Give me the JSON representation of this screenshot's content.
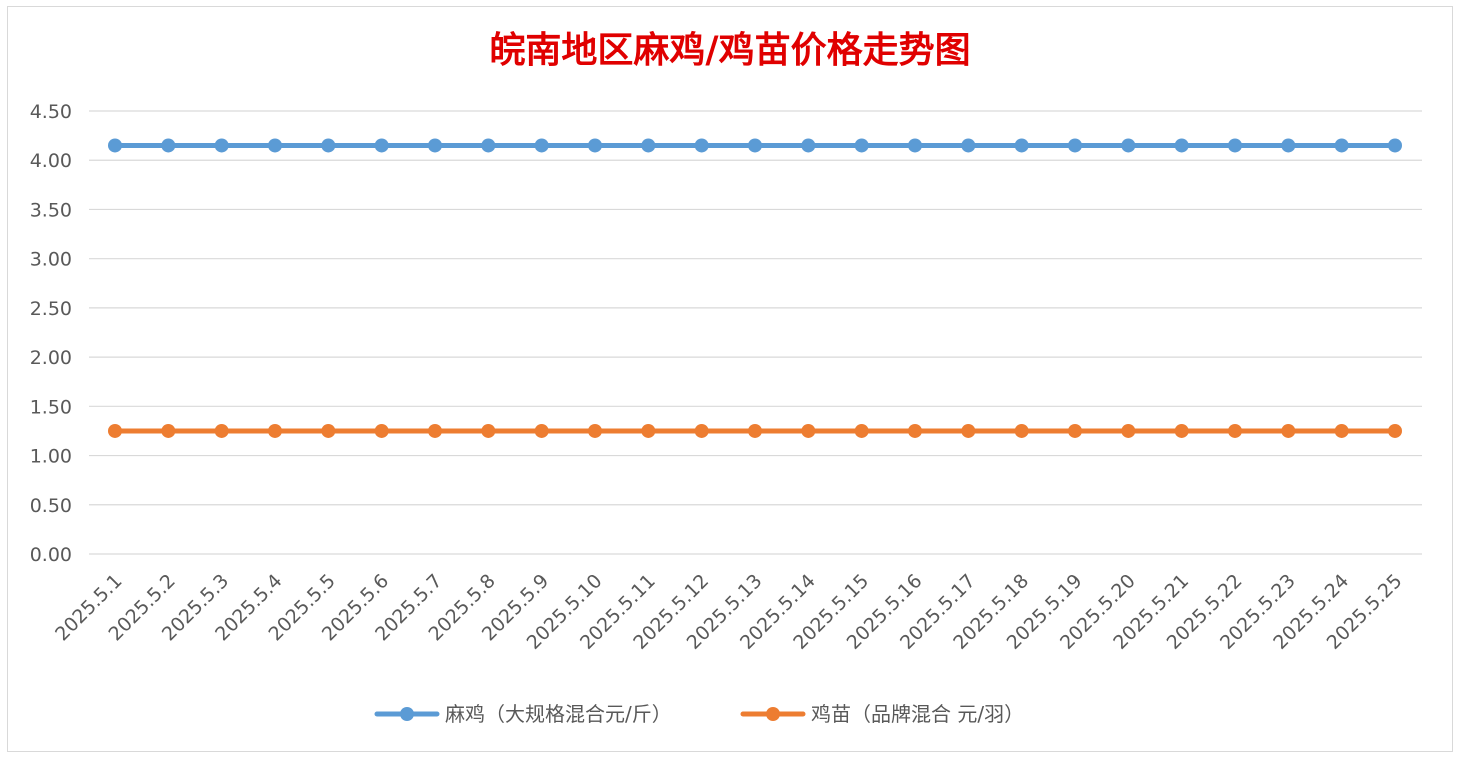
{
  "chart_data": {
    "type": "line",
    "title": "皖南地区麻鸡/鸡苗价格走势图",
    "xlabel": "",
    "ylabel": "",
    "ylim": [
      0,
      4.5
    ],
    "yticks": [
      "0.00",
      "0.50",
      "1.00",
      "1.50",
      "2.00",
      "2.50",
      "3.00",
      "3.50",
      "4.00",
      "4.50"
    ],
    "grid": true,
    "legend_position": "bottom",
    "categories": [
      "2025.5.1",
      "2025.5.2",
      "2025.5.3",
      "2025.5.4",
      "2025.5.5",
      "2025.5.6",
      "2025.5.7",
      "2025.5.8",
      "2025.5.9",
      "2025.5.10",
      "2025.5.11",
      "2025.5.12",
      "2025.5.13",
      "2025.5.14",
      "2025.5.15",
      "2025.5.16",
      "2025.5.17",
      "2025.5.18",
      "2025.5.19",
      "2025.5.20",
      "2025.5.21",
      "2025.5.22",
      "2025.5.23",
      "2025.5.24",
      "2025.5.25"
    ],
    "series": [
      {
        "name": "麻鸡（大规格混合元/斤）",
        "color": "#5b9bd5",
        "values": [
          4.15,
          4.15,
          4.15,
          4.15,
          4.15,
          4.15,
          4.15,
          4.15,
          4.15,
          4.15,
          4.15,
          4.15,
          4.15,
          4.15,
          4.15,
          4.15,
          4.15,
          4.15,
          4.15,
          4.15,
          4.15,
          4.15,
          4.15,
          4.15,
          4.15
        ]
      },
      {
        "name": "鸡苗（品牌混合 元/羽）",
        "color": "#ed7d31",
        "values": [
          1.25,
          1.25,
          1.25,
          1.25,
          1.25,
          1.25,
          1.25,
          1.25,
          1.25,
          1.25,
          1.25,
          1.25,
          1.25,
          1.25,
          1.25,
          1.25,
          1.25,
          1.25,
          1.25,
          1.25,
          1.25,
          1.25,
          1.25,
          1.25,
          1.25
        ]
      }
    ]
  }
}
